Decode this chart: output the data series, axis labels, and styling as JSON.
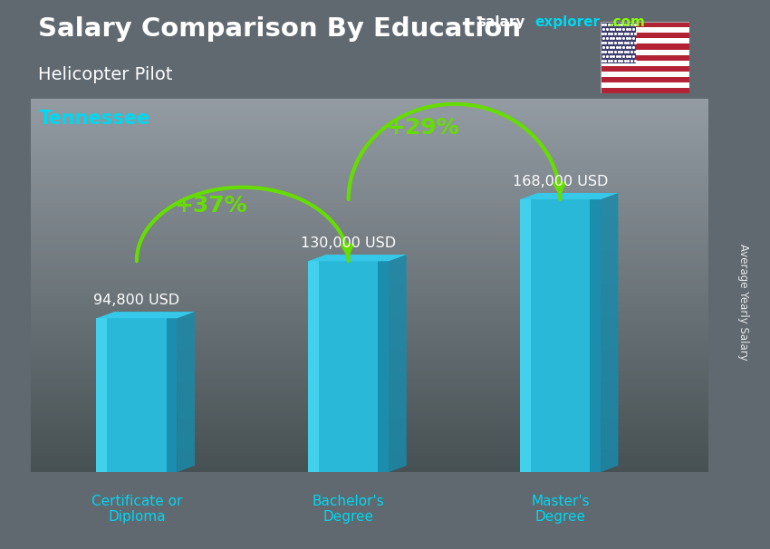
{
  "title_salary": "Salary Comparison By Education",
  "subtitle_job": "Helicopter Pilot",
  "subtitle_location": "Tennessee",
  "categories": [
    "Certificate or\nDiploma",
    "Bachelor's\nDegree",
    "Master's\nDegree"
  ],
  "values": [
    94800,
    130000,
    168000
  ],
  "value_labels": [
    "94,800 USD",
    "130,000 USD",
    "168,000 USD"
  ],
  "pct_labels": [
    "+37%",
    "+29%"
  ],
  "bar_color_main": "#29b8d8",
  "bar_color_left": "#45d4f0",
  "bar_color_right": "#1a8aaa",
  "bar_color_top": "#35c8e8",
  "bar_color_top_dark": "#1a9db8",
  "background_top": "#8a9aaa",
  "background_bottom": "#4a5560",
  "text_color_white": "#ffffff",
  "text_color_cyan": "#00d8f0",
  "text_color_green": "#88ff00",
  "arrow_color": "#66dd00",
  "ylabel": "Average Yearly Salary",
  "bar_width": 0.38,
  "bar_depth": 0.07,
  "ylim_max": 230000,
  "x_positions": [
    0.5,
    1.5,
    2.5
  ],
  "xlim": [
    0,
    3.2
  ]
}
